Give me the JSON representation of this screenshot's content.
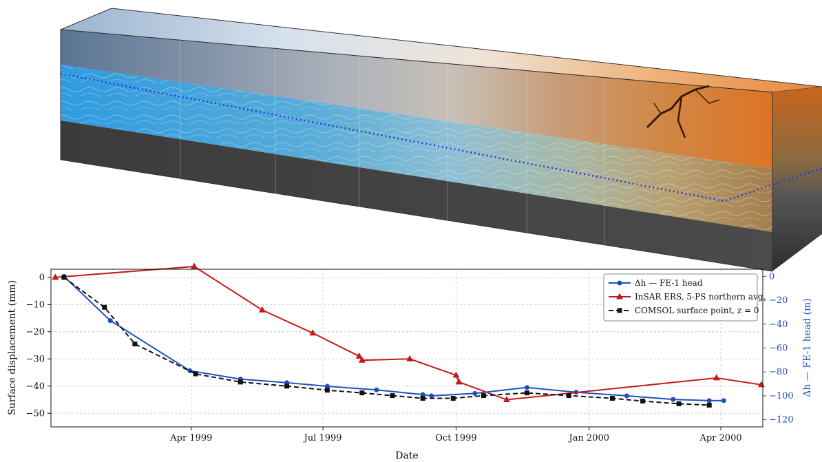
{
  "illustration": {
    "icon": "aquifer-block-diagram",
    "caption_visible": false,
    "zone_colors": [
      "#5d7a99",
      "#7f90a6",
      "#a9b0ba",
      "#c8c2b8",
      "#c7a080",
      "#cf8a4c",
      "#d9782e"
    ],
    "water_color": "#2f9be0",
    "bedrock_color": "#444444",
    "water_table_color": "#2233dd"
  },
  "chart_data": {
    "type": "line",
    "xlabel": "Date",
    "ylabel_left": "Surface displacement (mm)",
    "ylabel_right": "Δh — FE-1 head (m)",
    "x_ticks": [
      "1999-04-01",
      "1999-07-01",
      "1999-10-01",
      "2000-01-01",
      "2000-04-01"
    ],
    "x_tick_labels": [
      "Apr 1999",
      "Jul 1999",
      "Oct 1999",
      "Jan 2000",
      "Apr 2000"
    ],
    "xlim": [
      "1998-12-25",
      "2000-04-30"
    ],
    "ylim_left": [
      -55,
      3
    ],
    "yticks_left": [
      0,
      -10,
      -20,
      -30,
      -40,
      -50
    ],
    "ylim_right": [
      -126,
      6
    ],
    "yticks_right": [
      0,
      -20,
      -40,
      -60,
      -80,
      -100,
      -120
    ],
    "grid": true,
    "legend_position": "top-right",
    "series": [
      {
        "name": "Δh — FE-1 head",
        "axis": "right",
        "color": "#1f4fbf",
        "marker": "circle",
        "dash": "solid",
        "points": [
          [
            "1999-01-03",
            0
          ],
          [
            "1999-02-04",
            -37
          ],
          [
            "1999-03-31",
            -79
          ],
          [
            "1999-05-05",
            -86
          ],
          [
            "1999-06-06",
            -89
          ],
          [
            "1999-07-04",
            -92
          ],
          [
            "1999-08-07",
            -95
          ],
          [
            "1999-09-08",
            -99
          ],
          [
            "1999-09-14",
            -100
          ],
          [
            "1999-10-14",
            -98
          ],
          [
            "1999-11-19",
            -93
          ],
          [
            "1999-12-23",
            -97
          ],
          [
            "2000-01-27",
            -100
          ],
          [
            "2000-02-28",
            -103
          ],
          [
            "2000-03-24",
            -104
          ],
          [
            "2000-04-03",
            -104
          ]
        ]
      },
      {
        "name": "InSAR ERS, 5-PS northern avg.",
        "axis": "left",
        "color": "#c21b17",
        "marker": "triangle",
        "dash": "solid",
        "points": [
          [
            "1998-12-28",
            0
          ],
          [
            "1999-04-03",
            4
          ],
          [
            "1999-05-20",
            -12
          ],
          [
            "1999-06-24",
            -20.5
          ],
          [
            "1999-07-26",
            -29
          ],
          [
            "1999-07-28",
            -30.5
          ],
          [
            "1999-08-30",
            -30
          ],
          [
            "1999-10-01",
            -36
          ],
          [
            "1999-10-03",
            -38.5
          ],
          [
            "1999-11-05",
            -45
          ],
          [
            "2000-03-29",
            -37
          ],
          [
            "2000-04-29",
            -39.5
          ]
        ]
      },
      {
        "name": "COMSOL surface point, z = 0",
        "axis": "left",
        "color": "#111111",
        "marker": "square",
        "dash": "dashed",
        "points": [
          [
            "1999-01-03",
            0
          ],
          [
            "1999-01-31",
            -11
          ],
          [
            "1999-02-21",
            -24.5
          ],
          [
            "1999-04-04",
            -35.5
          ],
          [
            "1999-05-05",
            -38.5
          ],
          [
            "1999-06-06",
            -40
          ],
          [
            "1999-07-04",
            -41.5
          ],
          [
            "1999-07-28",
            -42.5
          ],
          [
            "1999-08-18",
            -43.5
          ],
          [
            "1999-09-08",
            -44.5
          ],
          [
            "1999-09-29",
            -44.5
          ],
          [
            "1999-10-20",
            -43.5
          ],
          [
            "1999-11-19",
            -42.5
          ],
          [
            "1999-12-18",
            -43.5
          ],
          [
            "2000-01-17",
            -44.5
          ],
          [
            "2000-02-07",
            -45.5
          ],
          [
            "2000-03-03",
            -46.5
          ],
          [
            "2000-03-24",
            -47
          ]
        ]
      }
    ]
  }
}
